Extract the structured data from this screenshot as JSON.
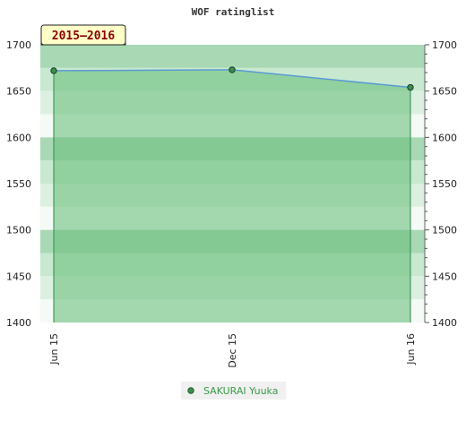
{
  "chart_data": {
    "type": "area",
    "title": "WOF ratinglist",
    "period_label": "2015–2016",
    "x": [
      "Jun 15",
      "Dec 15",
      "Jun 16"
    ],
    "series": [
      {
        "name": "SAKURAI Yuuka",
        "values": [
          1672,
          1673,
          1654
        ]
      }
    ],
    "ylim": [
      1400,
      1700
    ],
    "yticks": [
      1400,
      1450,
      1500,
      1550,
      1600,
      1650,
      1700
    ],
    "ytick_labels": [
      "1400",
      "1450",
      "1500",
      "1550",
      "1600",
      "1650",
      "1700"
    ],
    "xtick_labels": [
      "Jun 15",
      "Dec 15",
      "Jun 16"
    ],
    "legend_position": "bottom",
    "grid": false,
    "colors": {
      "fill": "#6cc07f",
      "line": "#5b9bd5",
      "marker": "#3a8f4e",
      "legend_text": "#3a9a4a",
      "badge_bg": "#ffffc8",
      "badge_text": "#8b0000"
    }
  }
}
